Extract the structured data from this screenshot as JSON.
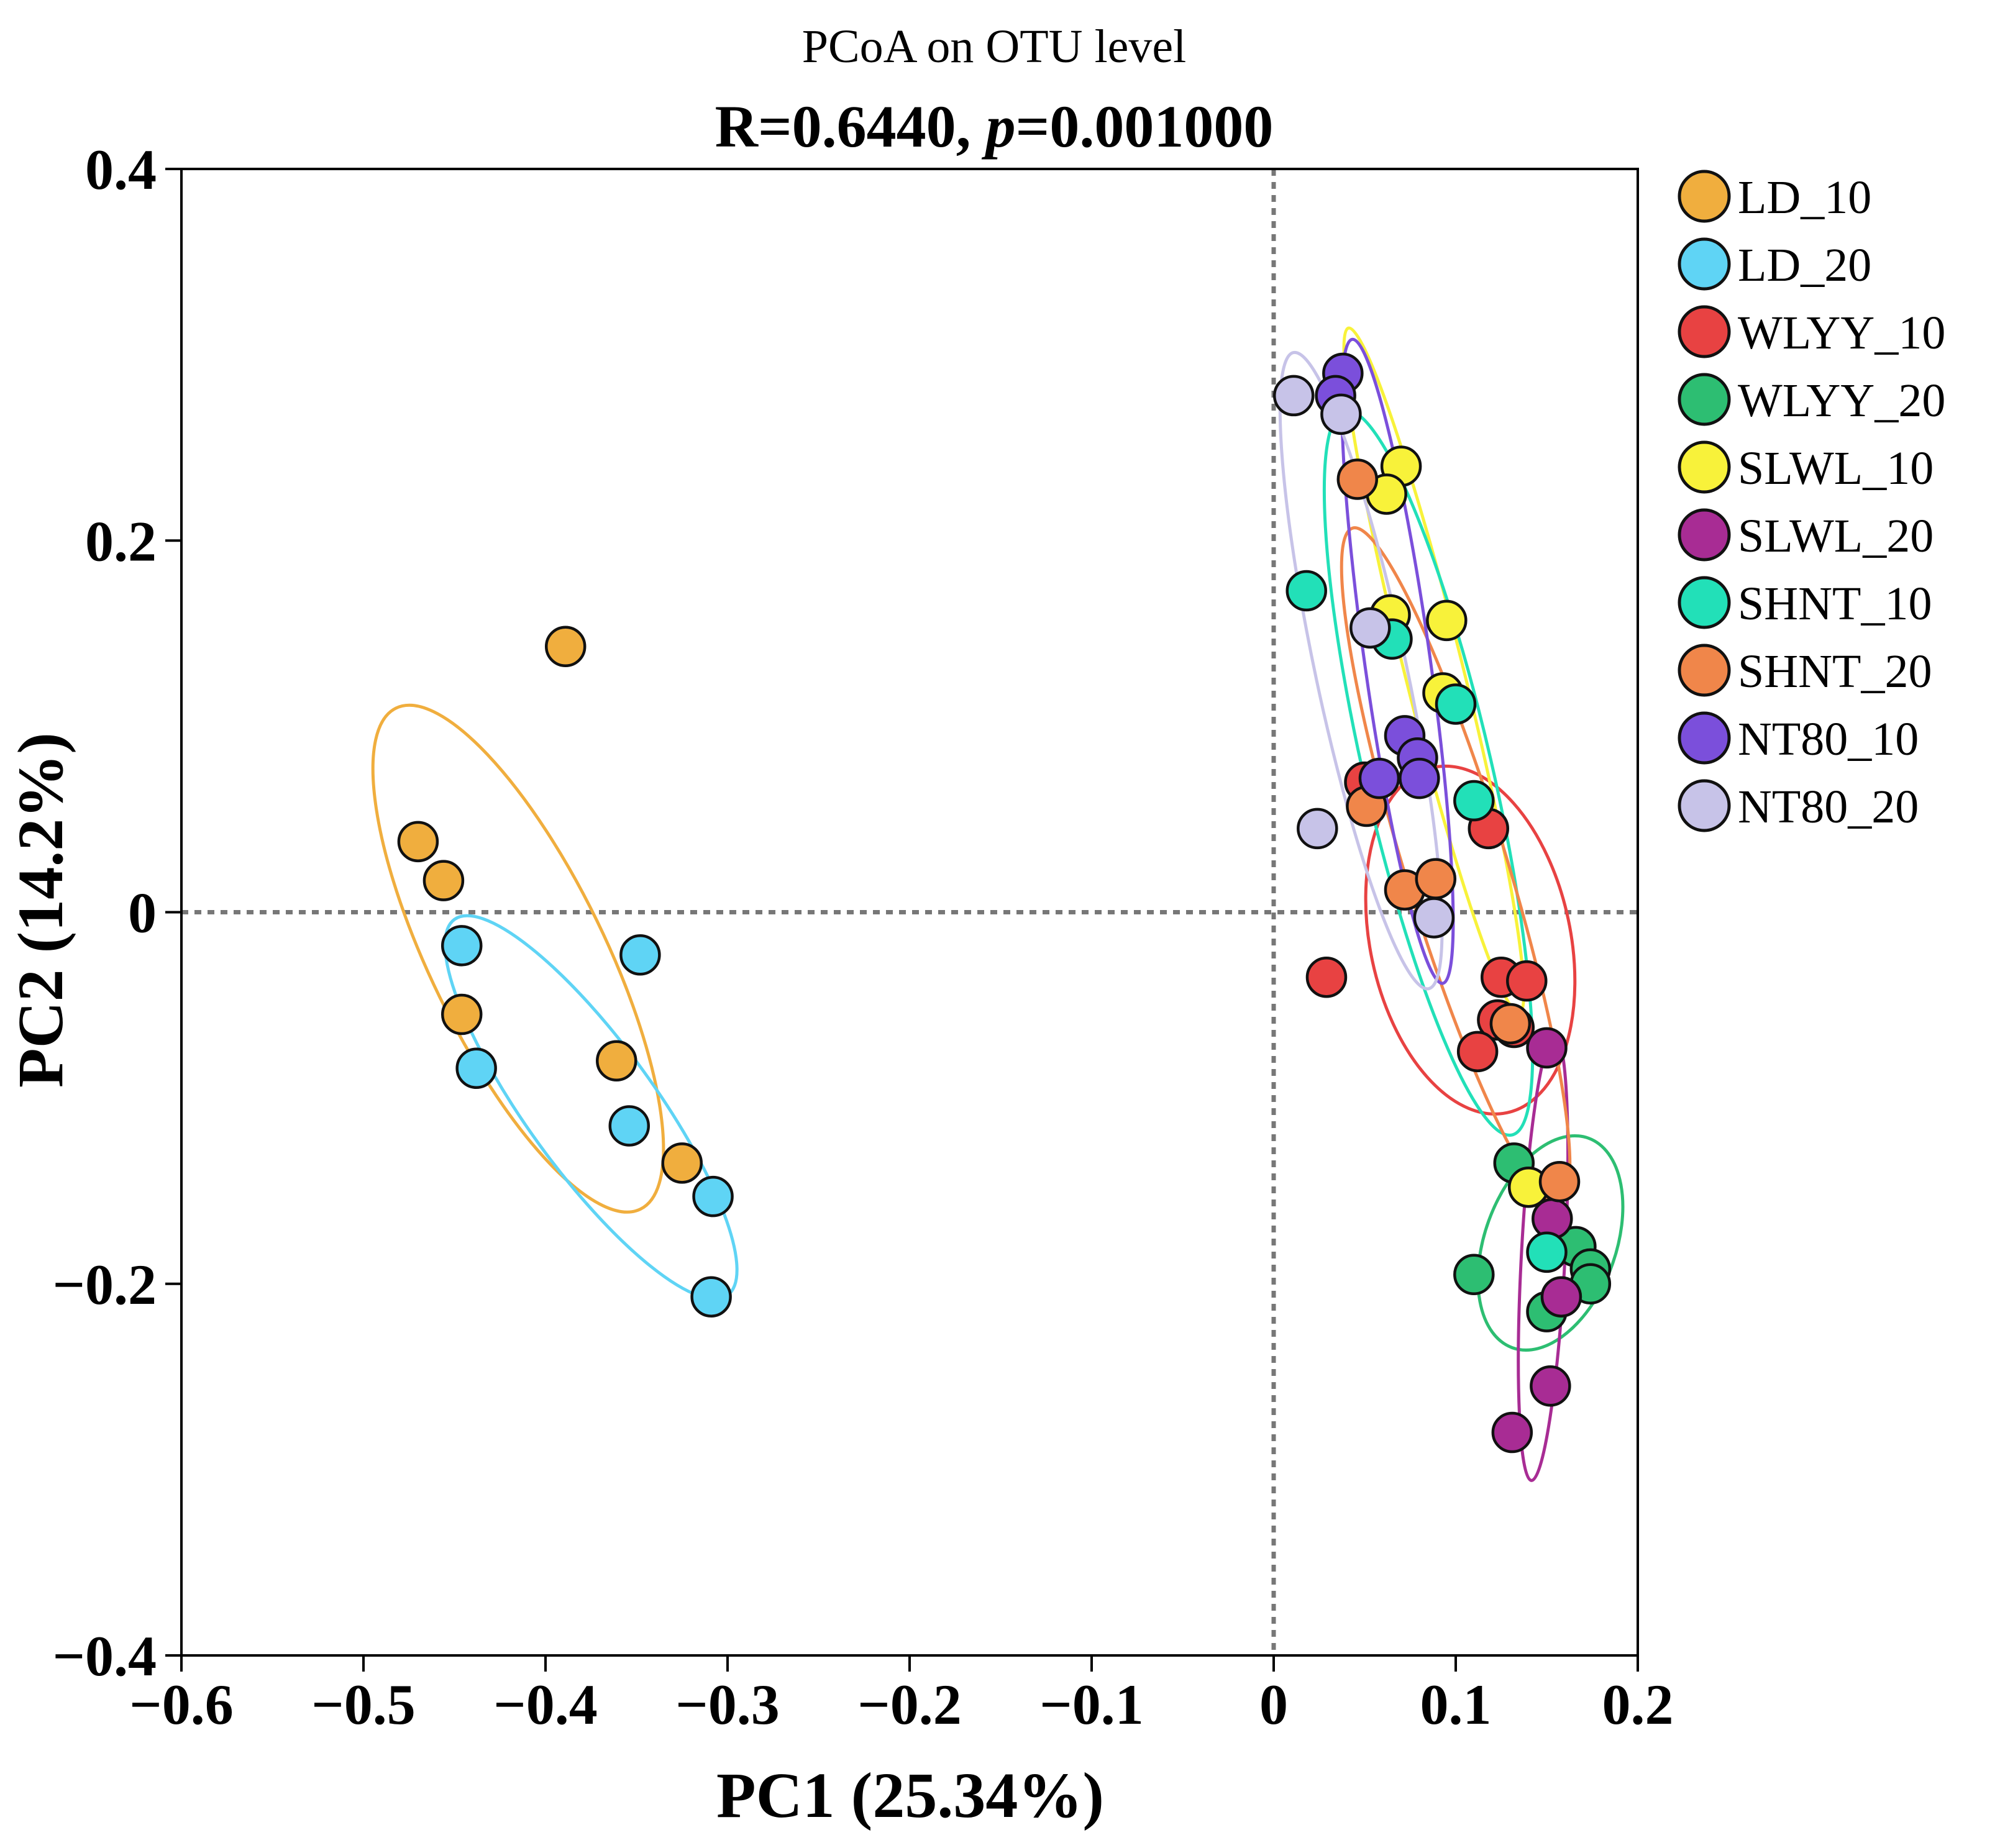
{
  "chart_data": {
    "type": "scatter",
    "title": "PCoA on OTU level",
    "subtitle": {
      "prefix": "R=0.6440, ",
      "italic": "p",
      "suffix": "=0.001000"
    },
    "xlabel": "PC1 (25.34%)",
    "ylabel": "PC2 (14.2%)",
    "xlim": [
      -0.6,
      0.2
    ],
    "ylim": [
      -0.4,
      0.4
    ],
    "xticks": [
      -0.6,
      -0.5,
      -0.4,
      -0.3,
      -0.2,
      -0.1,
      0,
      0.1,
      0.2
    ],
    "xtick_labels": [
      "−0.6",
      "−0.5",
      "−0.4",
      "−0.3",
      "−0.2",
      "−0.1",
      "0",
      "0.1",
      "0.2"
    ],
    "yticks": [
      0.4,
      0.2,
      0,
      -0.2,
      -0.4
    ],
    "ytick_labels": [
      "0.4",
      "0.2",
      "0",
      "−0.2",
      "−0.4"
    ],
    "reference_lines": {
      "x": 0,
      "y": 0,
      "style": "dotted"
    },
    "legend_position": "right",
    "series": [
      {
        "name": "LD_10",
        "color": "#F0AE3E",
        "points": [
          [
            -0.389,
            0.143
          ],
          [
            -0.47,
            0.038
          ],
          [
            -0.456,
            0.017
          ],
          [
            -0.446,
            -0.055
          ],
          [
            -0.361,
            -0.08
          ],
          [
            -0.325,
            -0.135
          ]
        ],
        "ellipse": {
          "cx": -0.415,
          "cy": -0.025,
          "rx": 0.048,
          "ry": 0.15,
          "angle": -26
        }
      },
      {
        "name": "LD_20",
        "color": "#5FD4F5",
        "points": [
          [
            -0.446,
            -0.018
          ],
          [
            -0.438,
            -0.084
          ],
          [
            -0.348,
            -0.023
          ],
          [
            -0.354,
            -0.115
          ],
          [
            -0.308,
            -0.153
          ],
          [
            -0.309,
            -0.207
          ]
        ],
        "ellipse": {
          "cx": -0.375,
          "cy": -0.105,
          "rx": 0.035,
          "ry": 0.125,
          "angle": -36
        }
      },
      {
        "name": "WLYY_10",
        "color": "#E84242",
        "points": [
          [
            0.029,
            -0.035
          ],
          [
            0.05,
            0.07
          ],
          [
            0.118,
            0.045
          ],
          [
            0.125,
            -0.035
          ],
          [
            0.123,
            -0.058
          ],
          [
            0.112,
            -0.075
          ],
          [
            0.132,
            -0.062
          ],
          [
            0.139,
            -0.037
          ]
        ],
        "ellipse": {
          "cx": 0.108,
          "cy": -0.015,
          "rx": 0.055,
          "ry": 0.095,
          "angle": -12
        }
      },
      {
        "name": "WLYY_20",
        "color": "#2DBE72",
        "points": [
          [
            0.11,
            -0.195
          ],
          [
            0.132,
            -0.135
          ],
          [
            0.15,
            -0.215
          ],
          [
            0.166,
            -0.18
          ],
          [
            0.174,
            -0.192
          ],
          [
            0.174,
            -0.2
          ]
        ],
        "ellipse": {
          "cx": 0.152,
          "cy": -0.178,
          "rx": 0.036,
          "ry": 0.06,
          "angle": 20
        }
      },
      {
        "name": "SLWL_10",
        "color": "#F8F23A",
        "points": [
          [
            0.07,
            0.24
          ],
          [
            0.062,
            0.225
          ],
          [
            0.095,
            0.157
          ],
          [
            0.064,
            0.16
          ],
          [
            0.093,
            0.118
          ],
          [
            0.14,
            -0.148
          ]
        ],
        "ellipse": {
          "cx": 0.088,
          "cy": 0.13,
          "rx": 0.016,
          "ry": 0.19,
          "angle": -14
        }
      },
      {
        "name": "SLWL_20",
        "color": "#A82C94",
        "points": [
          [
            0.15,
            -0.073
          ],
          [
            0.153,
            -0.165
          ],
          [
            0.158,
            -0.207
          ],
          [
            0.152,
            -0.255
          ],
          [
            0.131,
            -0.28
          ]
        ],
        "ellipse": {
          "cx": 0.148,
          "cy": -0.186,
          "rx": 0.012,
          "ry": 0.12,
          "angle": 3
        }
      },
      {
        "name": "SHNT_10",
        "color": "#22E0B8",
        "points": [
          [
            0.018,
            0.173
          ],
          [
            0.065,
            0.147
          ],
          [
            0.1,
            0.112
          ],
          [
            0.11,
            0.06
          ],
          [
            0.15,
            -0.183
          ]
        ],
        "ellipse": {
          "cx": 0.085,
          "cy": 0.075,
          "rx": 0.035,
          "ry": 0.2,
          "angle": -13
        }
      },
      {
        "name": "SHNT_20",
        "color": "#F0864A",
        "points": [
          [
            0.046,
            0.233
          ],
          [
            0.051,
            0.057
          ],
          [
            0.072,
            0.012
          ],
          [
            0.089,
            0.018
          ],
          [
            0.13,
            -0.06
          ],
          [
            0.157,
            -0.145
          ]
        ],
        "ellipse": {
          "cx": 0.1,
          "cy": 0.025,
          "rx": 0.028,
          "ry": 0.19,
          "angle": -17
        }
      },
      {
        "name": "NT80_10",
        "color": "#7B4FDB",
        "points": [
          [
            0.038,
            0.29
          ],
          [
            0.034,
            0.278
          ],
          [
            0.072,
            0.095
          ],
          [
            0.079,
            0.083
          ],
          [
            0.08,
            0.072
          ],
          [
            0.058,
            0.072
          ]
        ],
        "ellipse": {
          "cx": 0.068,
          "cy": 0.135,
          "rx": 0.018,
          "ry": 0.175,
          "angle": -8
        }
      },
      {
        "name": "NT80_20",
        "color": "#C7C3E8",
        "points": [
          [
            0.011,
            0.278
          ],
          [
            0.037,
            0.268
          ],
          [
            0.053,
            0.153
          ],
          [
            0.024,
            0.045
          ],
          [
            0.088,
            -0.003
          ]
        ],
        "ellipse": {
          "cx": 0.048,
          "cy": 0.13,
          "rx": 0.025,
          "ry": 0.175,
          "angle": -12
        }
      }
    ]
  }
}
